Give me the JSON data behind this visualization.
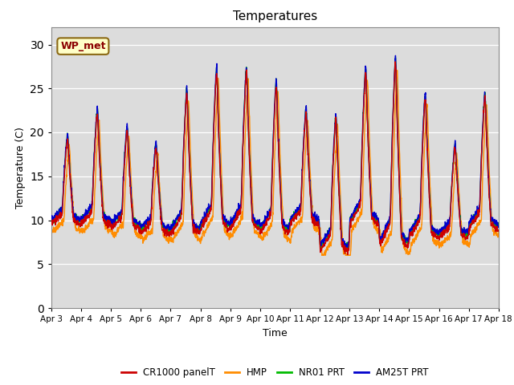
{
  "title": "Temperatures",
  "xlabel": "Time",
  "ylabel": "Temperature (C)",
  "ylim": [
    0,
    32
  ],
  "yticks": [
    0,
    5,
    10,
    15,
    20,
    25,
    30
  ],
  "x_labels": [
    "Apr 3",
    "Apr 4",
    "Apr 5",
    "Apr 6",
    "Apr 7",
    "Apr 8",
    "Apr 9",
    "Apr 10",
    "Apr 11",
    "Apr 12",
    "Apr 13",
    "Apr 14",
    "Apr 15",
    "Apr 16",
    "Apr 17",
    "Apr 18"
  ],
  "annotation_text": "WP_met",
  "annotation_facecolor": "#FFFFC8",
  "annotation_edgecolor": "#8B6914",
  "colors": {
    "CR1000_panelT": "#CC0000",
    "HMP": "#FF8C00",
    "NR01_PRT": "#00BB00",
    "AM25T_PRT": "#0000CC"
  },
  "legend_labels": [
    "CR1000 panelT",
    "HMP",
    "NR01 PRT",
    "AM25T PRT"
  ],
  "legend_colors": [
    "#CC0000",
    "#FF8C00",
    "#00BB00",
    "#0000CC"
  ],
  "bg_color": "#DCDCDC",
  "fig_bg": "#FFFFFF",
  "linewidth": 1.0
}
